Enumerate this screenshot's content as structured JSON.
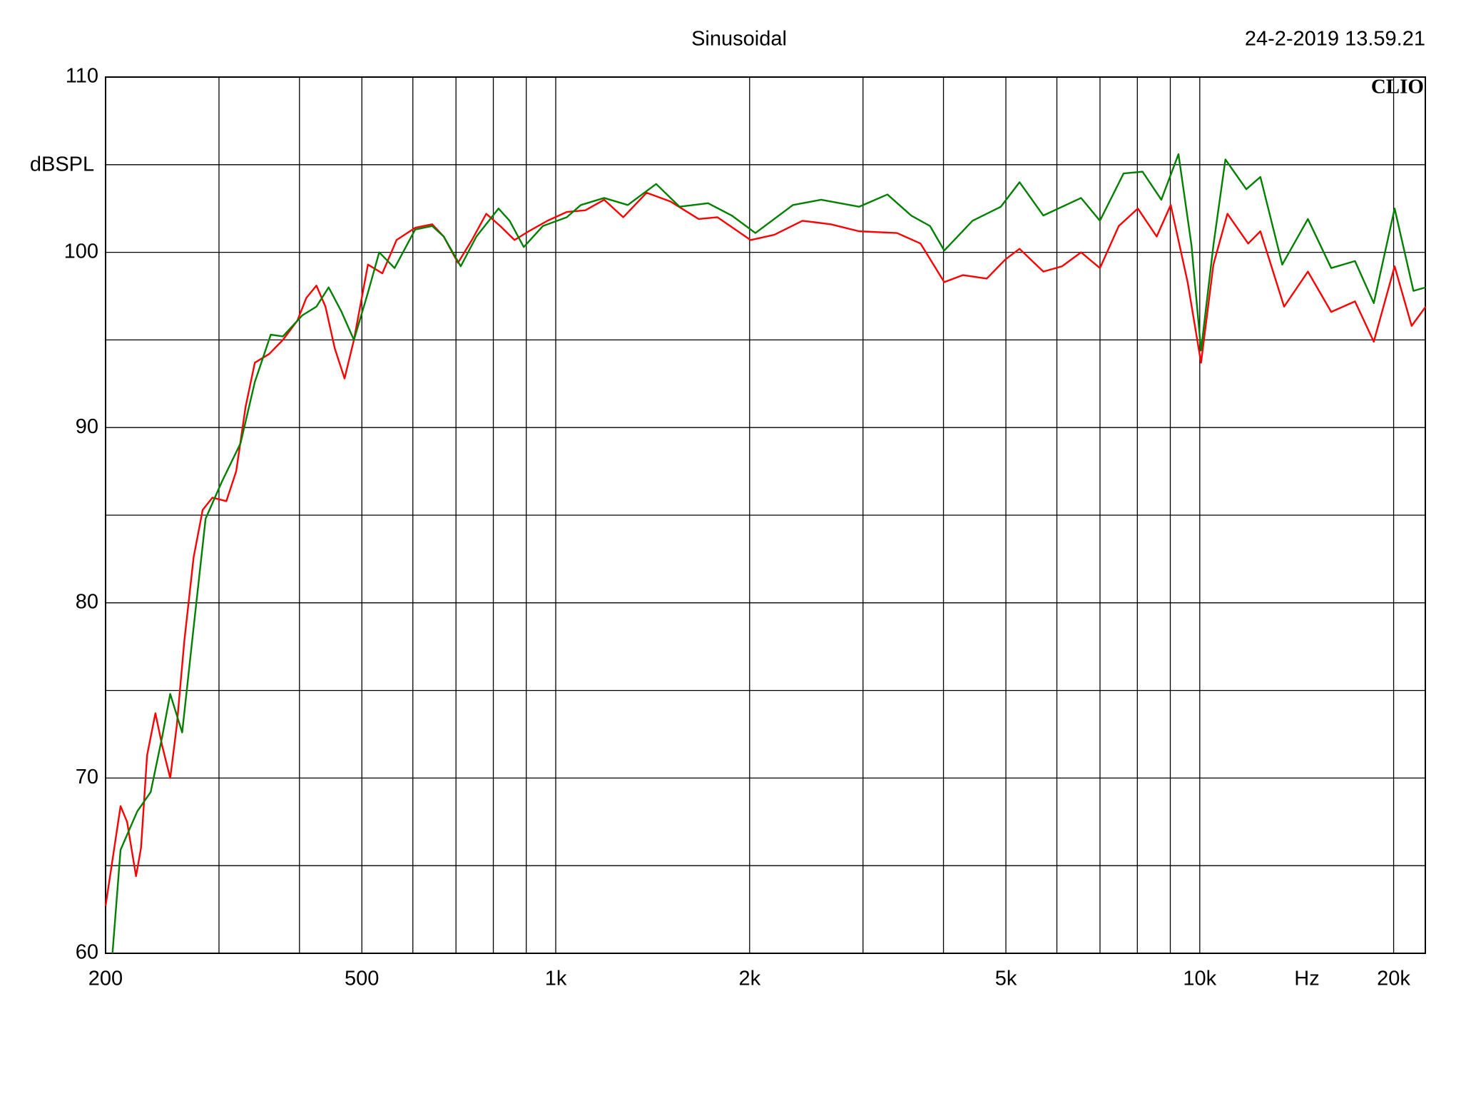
{
  "chart_data": {
    "type": "line",
    "title": "Sinusoidal",
    "timestamp": "24-2-2019 13.59.21",
    "logo": "CLIO",
    "y_label": "dBSPL",
    "x_label": "Hz",
    "x_log": true,
    "grid": true,
    "xlim": [
      200,
      22400
    ],
    "ylim": [
      60,
      110
    ],
    "xticks": [
      200,
      500,
      {
        "value": 1000,
        "label": "1k"
      },
      {
        "value": 2000,
        "label": "2k"
      },
      {
        "value": 5000,
        "label": "5k"
      },
      {
        "value": 10000,
        "label": "10k"
      },
      {
        "value": 20000,
        "label": "20k"
      }
    ],
    "xgrid": [
      300,
      400,
      600,
      700,
      800,
      900,
      3000,
      4000,
      6000,
      7000,
      8000,
      9000
    ],
    "yticks": [
      60,
      70,
      80,
      90,
      100,
      110
    ],
    "ygrid": [
      65,
      75,
      85,
      95,
      105
    ],
    "series": [
      {
        "color": "#ff0000",
        "x": [
          200,
          211,
          216,
          223,
          227,
          232,
          239,
          245,
          252,
          258,
          265,
          274,
          283,
          293,
          308,
          319,
          330,
          341,
          359,
          377,
          397,
          410,
          425,
          439,
          454,
          470,
          486,
          511,
          538,
          566,
          605,
          643,
          670,
          705,
          741,
          780,
          820,
          863,
          908,
          971,
          1040,
          1112,
          1189,
          1273,
          1384,
          1507,
          1667,
          1783,
          2007,
          2184,
          2416,
          2673,
          2958,
          3388,
          3685,
          4011,
          4289,
          4669,
          4993,
          5250,
          5716,
          6111,
          6542,
          6998,
          7486,
          8014,
          8573,
          9014,
          9575,
          10046,
          10500,
          11040,
          11890,
          12420,
          13520,
          14720,
          16000,
          17420,
          18630,
          20070,
          21330,
          22430
        ],
        "values": [
          62.7,
          68.4,
          67.5,
          64.4,
          66,
          71.3,
          73.7,
          71.8,
          70,
          73,
          77.8,
          82.6,
          85.3,
          86,
          85.8,
          87.5,
          91.2,
          93.7,
          94.2,
          95,
          96.1,
          97.4,
          98.1,
          96.9,
          94.5,
          92.8,
          95,
          99.3,
          98.8,
          100.7,
          101.4,
          101.6,
          100.9,
          99.4,
          100.7,
          102.2,
          101.5,
          100.7,
          101.2,
          101.8,
          102.3,
          102.4,
          103,
          102,
          103.4,
          102.9,
          101.9,
          102,
          100.7,
          101,
          101.8,
          101.6,
          101.2,
          101.1,
          100.5,
          98.3,
          98.7,
          98.5,
          99.6,
          100.2,
          98.9,
          99.2,
          100,
          99.1,
          101.5,
          102.5,
          100.9,
          102.7,
          98.3,
          93.7,
          99.3,
          102.2,
          100.5,
          101.2,
          96.9,
          98.9,
          96.6,
          97.2,
          94.9,
          99.2,
          95.8,
          96.9
        ]
      },
      {
        "color": "#008000",
        "x": [
          205,
          211,
          224,
          235,
          245,
          252,
          263,
          274,
          286,
          303,
          324,
          341,
          361,
          377,
          404,
          425,
          444,
          465,
          486,
          511,
          532,
          562,
          605,
          643,
          670,
          712,
          753,
          815,
          848,
          892,
          955,
          1040,
          1094,
          1189,
          1294,
          1432,
          1557,
          1724,
          1876,
          2042,
          2335,
          2583,
          2958,
          3274,
          3563,
          3812,
          4011,
          4437,
          4910,
          5250,
          5716,
          6542,
          6998,
          7616,
          8150,
          8716,
          9267,
          9709,
          10046,
          10500,
          10960,
          11810,
          12420,
          13430,
          14720,
          16000,
          17420,
          18630,
          20070,
          21470,
          22430
        ],
        "values": [
          60,
          65.9,
          68.1,
          69.2,
          72.4,
          74.8,
          72.6,
          78.6,
          84.8,
          86.9,
          89.1,
          92.6,
          95.3,
          95.2,
          96.4,
          96.9,
          98,
          96.6,
          95,
          97.7,
          100,
          99.1,
          101.3,
          101.5,
          100.9,
          99.2,
          100.9,
          102.5,
          101.8,
          100.3,
          101.5,
          102,
          102.7,
          103.1,
          102.7,
          103.9,
          102.6,
          102.8,
          102.1,
          101.1,
          102.7,
          103,
          102.6,
          103.3,
          102.1,
          101.5,
          100.1,
          101.8,
          102.6,
          104,
          102.1,
          103.1,
          101.8,
          104.5,
          104.6,
          103,
          105.6,
          100.4,
          94.4,
          100.4,
          105.3,
          103.6,
          104.3,
          99.3,
          101.9,
          99.1,
          99.5,
          97.1,
          102.5,
          97.8,
          98
        ]
      }
    ]
  }
}
